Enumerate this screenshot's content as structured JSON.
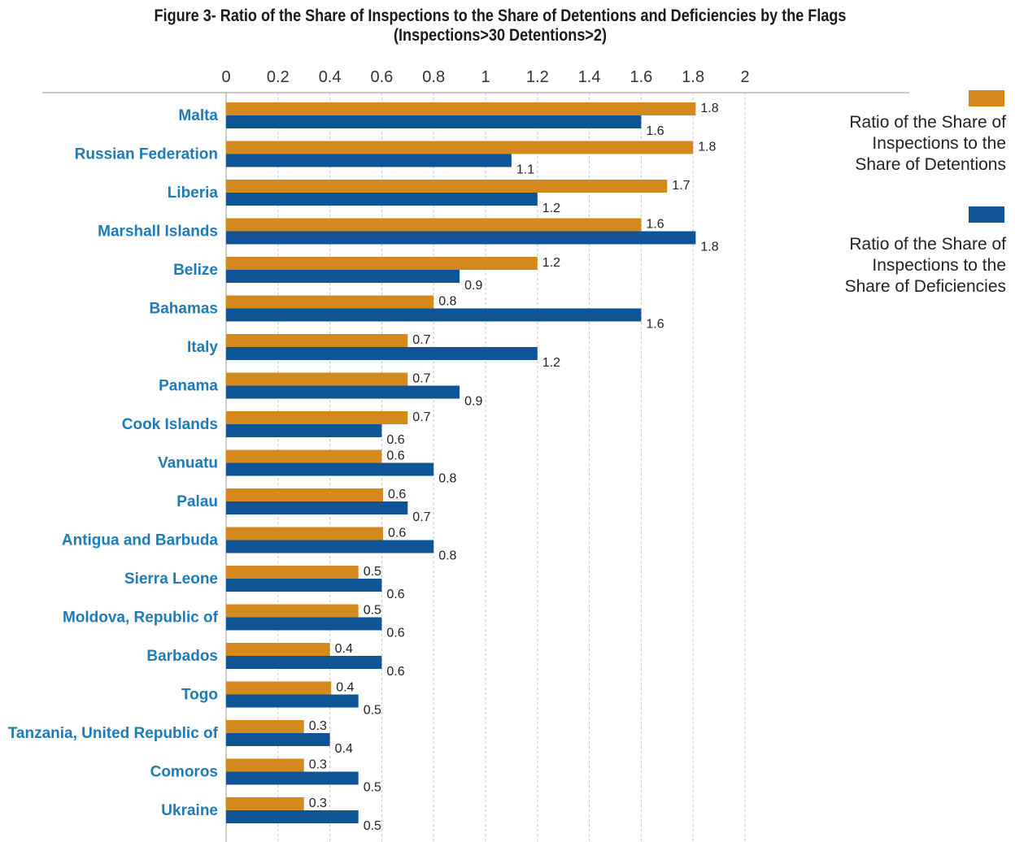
{
  "title_line1": "Figure 3- Ratio of the Share of Inspections to the Share of Detentions and Deficiencies by the Flags",
  "title_line2": "(Inspections>30 Detentions>2)",
  "colors": {
    "detentions": "#d4891f",
    "deficiencies": "#0f5595",
    "category_label": "#1f7ab8"
  },
  "chart_data": {
    "type": "bar",
    "orientation": "horizontal",
    "title": "Figure 3- Ratio of the Share of Inspections to the Share of Detentions and Deficiencies by the Flags (Inspections>30 Detentions>2)",
    "xlim": [
      0,
      2
    ],
    "ticks": [
      "0",
      "0.2",
      "0.4",
      "0.6",
      "0.8",
      "1",
      "1.2",
      "1.4",
      "1.6",
      "1.8",
      "2"
    ],
    "grid": true,
    "legend_position": "right",
    "categories": [
      "Malta",
      "Russian Federation",
      "Liberia",
      "Marshall Islands",
      "Belize",
      "Bahamas",
      "Italy",
      "Panama",
      "Cook Islands",
      "Vanuatu",
      "Palau",
      "Antigua and Barbuda",
      "Sierra Leone",
      "Moldova, Republic of",
      "Barbados",
      "Togo",
      "Tanzania, United Republic of",
      "Comoros",
      "Ukraine"
    ],
    "series": [
      {
        "name": "Ratio of the Share of Inspections to the Share of Detentions",
        "name_lines": [
          "Ratio of the Share of",
          "Inspections to the",
          "Share of Detentions"
        ],
        "color": "#d4891f",
        "values": [
          1.81,
          1.8,
          1.7,
          1.6,
          1.2,
          0.8,
          0.7,
          0.7,
          0.7,
          0.6,
          0.605,
          0.605,
          0.51,
          0.51,
          0.4,
          0.405,
          0.3,
          0.3,
          0.3
        ],
        "labels": [
          "1.8",
          "1.8",
          "1.7",
          "1.6",
          "1.2",
          "0.8",
          "0.7",
          "0.7",
          "0.7",
          "0.6",
          "0.6",
          "0.6",
          "0.5",
          "0.5",
          "0.4",
          "0.4",
          "0.3",
          "0.3",
          "0.3"
        ]
      },
      {
        "name": "Ratio of the Share of Inspections to the Share of Deficiencies",
        "name_lines": [
          "Ratio of the Share of",
          "Inspections to the",
          "Share of Deficiencies"
        ],
        "color": "#0f5595",
        "values": [
          1.6,
          1.1,
          1.2,
          1.81,
          0.9,
          1.6,
          1.2,
          0.9,
          0.6,
          0.8,
          0.7,
          0.8,
          0.6,
          0.6,
          0.6,
          0.51,
          0.4,
          0.51,
          0.51
        ],
        "labels": [
          "1.6",
          "1.1",
          "1.2",
          "1.8",
          "0.9",
          "1.6",
          "1.2",
          "0.9",
          "0.6",
          "0.8",
          "0.7",
          "0.8",
          "0.6",
          "0.6",
          "0.6",
          "0.5",
          "0.4",
          "0.5",
          "0.5"
        ]
      }
    ]
  }
}
